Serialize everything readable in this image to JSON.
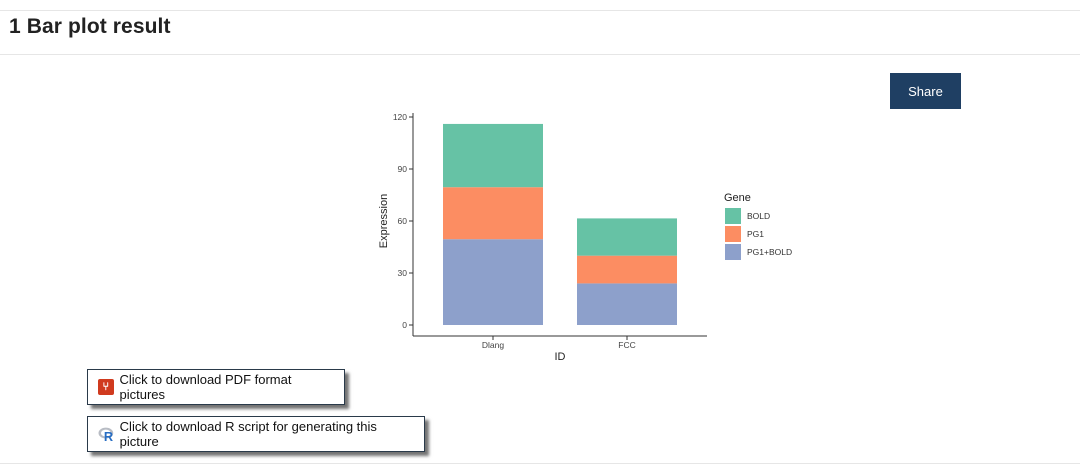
{
  "section": {
    "title": "1 Bar plot result"
  },
  "share": {
    "label": "Share"
  },
  "downloads": {
    "pdf_label": "Click to download PDF format pictures",
    "r_label": "Click to download R script for generating this picture"
  },
  "icons": {
    "pdf": "pdf-file-icon",
    "r": "r-logo-icon"
  },
  "chart_data": {
    "type": "bar",
    "stacked": true,
    "categories": [
      "Dlang",
      "FCC"
    ],
    "series": [
      {
        "name": "PG1+BOLD",
        "values": [
          49.5,
          24
        ],
        "color": "#8da0cb"
      },
      {
        "name": "PG1",
        "values": [
          30,
          16
        ],
        "color": "#fc8d62"
      },
      {
        "name": "BOLD",
        "values": [
          36.5,
          21.5
        ],
        "color": "#66c2a5"
      }
    ],
    "xlabel": "ID",
    "ylabel": "Expression",
    "ylim": [
      0,
      120
    ],
    "yticks": [
      0,
      30,
      60,
      90,
      120
    ],
    "legend": {
      "title": "Gene",
      "entries": [
        "BOLD",
        "PG1",
        "PG1+BOLD"
      ],
      "position": "right"
    },
    "grid": false
  }
}
